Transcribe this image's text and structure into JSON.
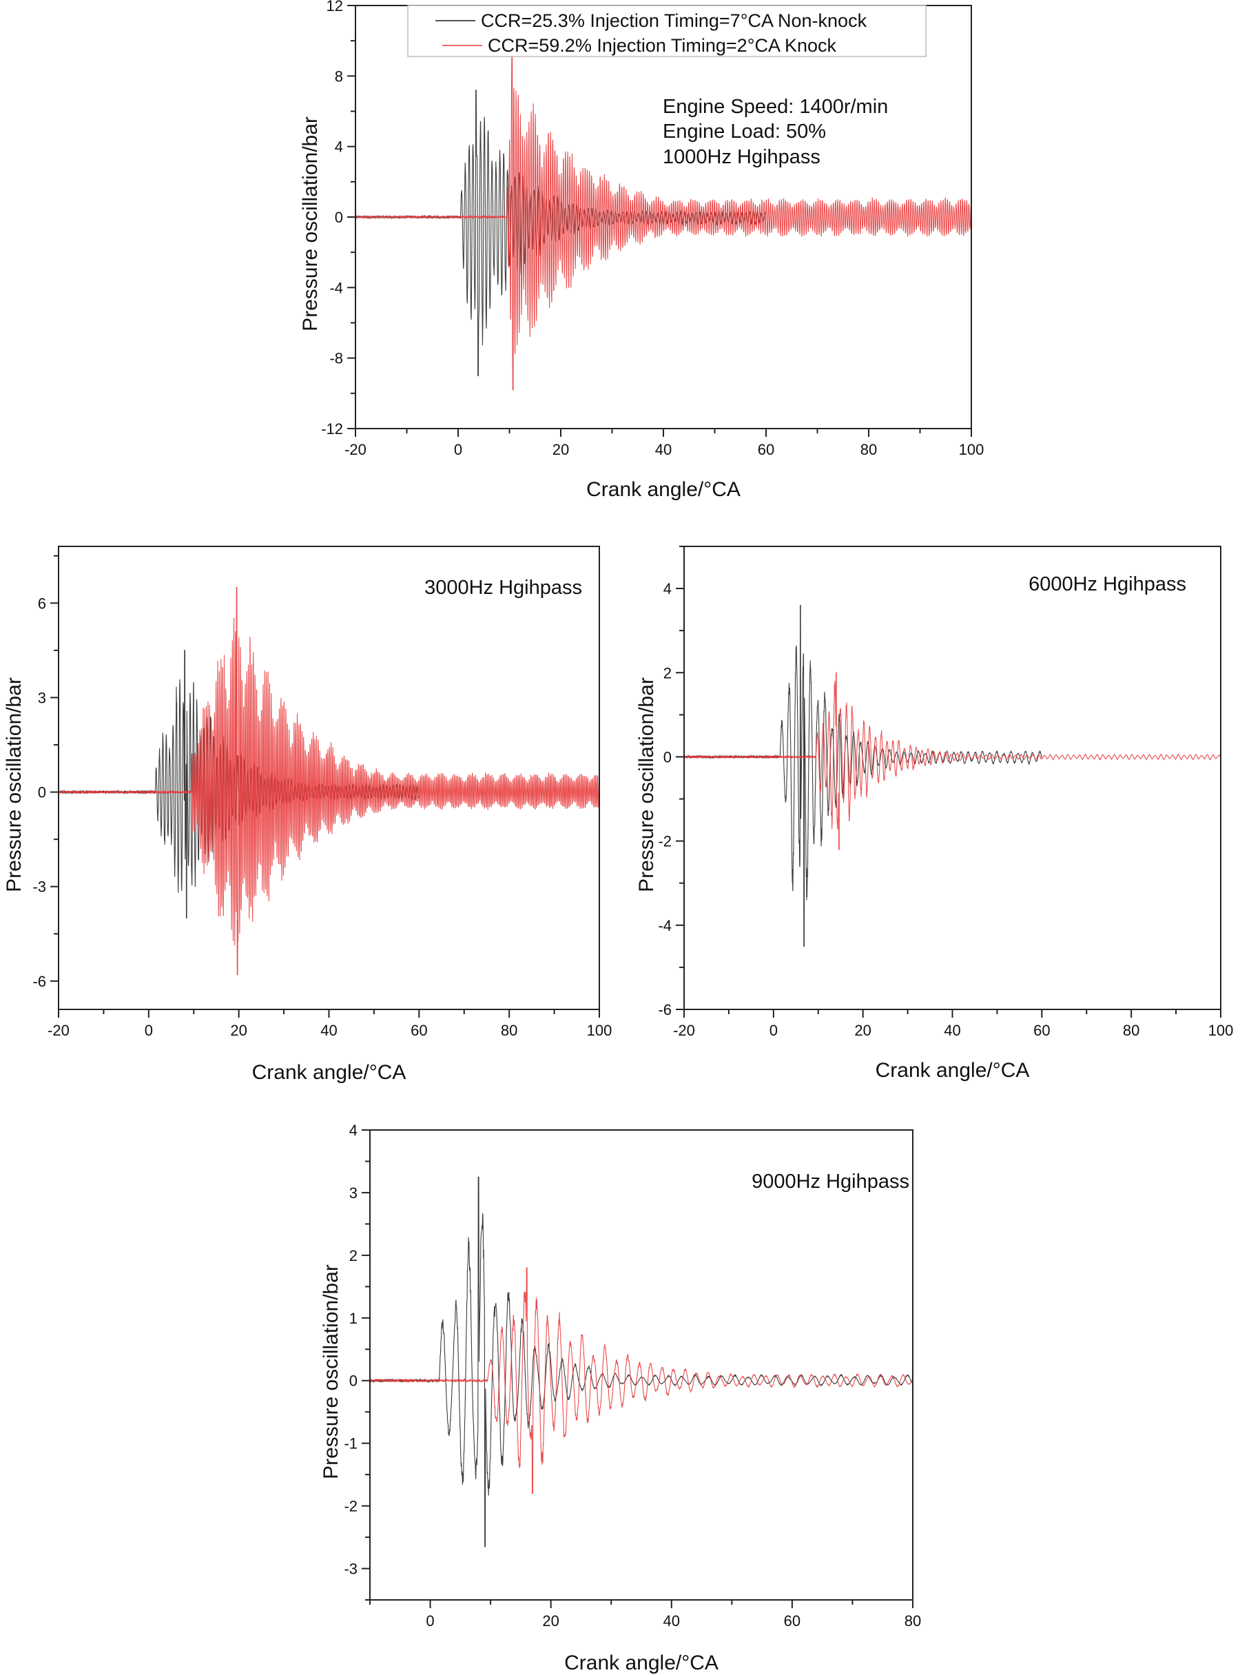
{
  "colors": {
    "non_knock": "#1a1a1a",
    "knock": "#e8393a"
  },
  "legend": {
    "non_knock": "CCR=25.3% Injection Timing=7°CA Non-knock",
    "knock": "CCR=59.2% Injection Timing=2°CA Knock"
  },
  "chart_data": [
    {
      "type": "line",
      "xlabel": "Crank angle/°CA",
      "ylabel": "Pressure oscillation/bar",
      "xlim": [
        -20,
        100
      ],
      "ylim": [
        -12,
        12
      ],
      "xticks": [
        "-20",
        "0",
        "20",
        "40",
        "60",
        "80",
        "100"
      ],
      "yticks": [
        "12",
        "8",
        "4",
        "0",
        "-4",
        "-8",
        "-12"
      ],
      "annotations": [
        "Engine Speed: 1400r/min",
        "Engine Load: 50%",
        "1000Hz Hgihpass"
      ],
      "legend_position": "top",
      "series": [
        {
          "name": "CCR=25.3% Injection Timing=7°CA Non-knock",
          "onset": 0.5,
          "peak_x": 3.5,
          "peak_pos": 7.2,
          "peak_neg": -9.0,
          "decay": 9.0,
          "freq": 0.75,
          "end": 60,
          "tail": 0.05
        },
        {
          "name": "CCR=59.2% Injection Timing=2°CA Knock",
          "onset": 9.5,
          "peak_x": 10.5,
          "peak_pos": 9.4,
          "peak_neg": -9.8,
          "decay": 14.0,
          "freq": 0.42,
          "end": 100,
          "tail": 0.12
        }
      ]
    },
    {
      "type": "line",
      "xlabel": "Crank angle/°CA",
      "ylabel": "Pressure oscillation/bar",
      "xlim": [
        -20,
        100
      ],
      "ylim": [
        -6.9,
        7.8
      ],
      "xticks": [
        "-20",
        "0",
        "20",
        "40",
        "60",
        "80",
        "100"
      ],
      "yticks": [
        "6",
        "3",
        "0",
        "-3",
        "-6"
      ],
      "annotations": [
        "3000Hz Hgihpass"
      ],
      "series": [
        {
          "name": "CCR=25.3% Injection Timing=7°CA Non-knock",
          "onset": 1.5,
          "peak_x": 8.0,
          "peak_pos": 4.5,
          "peak_neg": -4.0,
          "decay": 10.0,
          "freq": 0.75,
          "end": 60,
          "tail": 0.06
        },
        {
          "name": "CCR=59.2% Injection Timing=2°CA Knock",
          "onset": 9.5,
          "peak_x": 19.5,
          "peak_pos": 6.5,
          "peak_neg": -5.8,
          "decay": 15.0,
          "freq": 0.36,
          "end": 100,
          "tail": 0.1
        }
      ]
    },
    {
      "type": "line",
      "xlabel": "Crank angle/°CA",
      "ylabel": "Pressure oscillation/bar",
      "xlim": [
        -20,
        100
      ],
      "ylim": [
        -6,
        5
      ],
      "xticks": [
        "-20",
        "0",
        "20",
        "40",
        "60",
        "80",
        "100"
      ],
      "yticks": [
        "4",
        "2",
        "0",
        "-2",
        "-4",
        "-6"
      ],
      "annotations": [
        "6000Hz Hgihpass"
      ],
      "series": [
        {
          "name": "CCR=25.3% Injection Timing=7°CA Non-knock",
          "onset": 1.5,
          "peak_x": 6.0,
          "peak_pos": 3.6,
          "peak_neg": -4.5,
          "decay": 7.0,
          "freq": 1.6,
          "end": 60,
          "tail": 0.04
        },
        {
          "name": "CCR=59.2% Injection Timing=2°CA Knock",
          "onset": 9.5,
          "peak_x": 14.0,
          "peak_pos": 2.0,
          "peak_neg": -2.2,
          "decay": 9.0,
          "freq": 1.3,
          "end": 100,
          "tail": 0.03
        }
      ]
    },
    {
      "type": "line",
      "xlabel": "Crank angle/°CA",
      "ylabel": "Pressure oscillation/bar",
      "xlim": [
        -10,
        80
      ],
      "ylim": [
        -3.5,
        4
      ],
      "xticks": [
        "0",
        "20",
        "40",
        "60",
        "80"
      ],
      "yticks": [
        "4",
        "3",
        "2",
        "1",
        "0",
        "-1",
        "-2",
        "-3"
      ],
      "annotations": [
        "9000Hz Hgihpass"
      ],
      "series": [
        {
          "name": "CCR=25.3% Injection Timing=7°CA Non-knock",
          "onset": 1.5,
          "peak_x": 8.0,
          "peak_pos": 3.25,
          "peak_neg": -2.65,
          "decay": 7.0,
          "freq": 2.2,
          "end": 80,
          "tail": 0.03
        },
        {
          "name": "CCR=59.2% Injection Timing=2°CA Knock",
          "onset": 9.5,
          "peak_x": 16.0,
          "peak_pos": 1.8,
          "peak_neg": -1.8,
          "decay": 12.0,
          "freq": 1.9,
          "end": 80,
          "tail": 0.06
        }
      ]
    }
  ]
}
